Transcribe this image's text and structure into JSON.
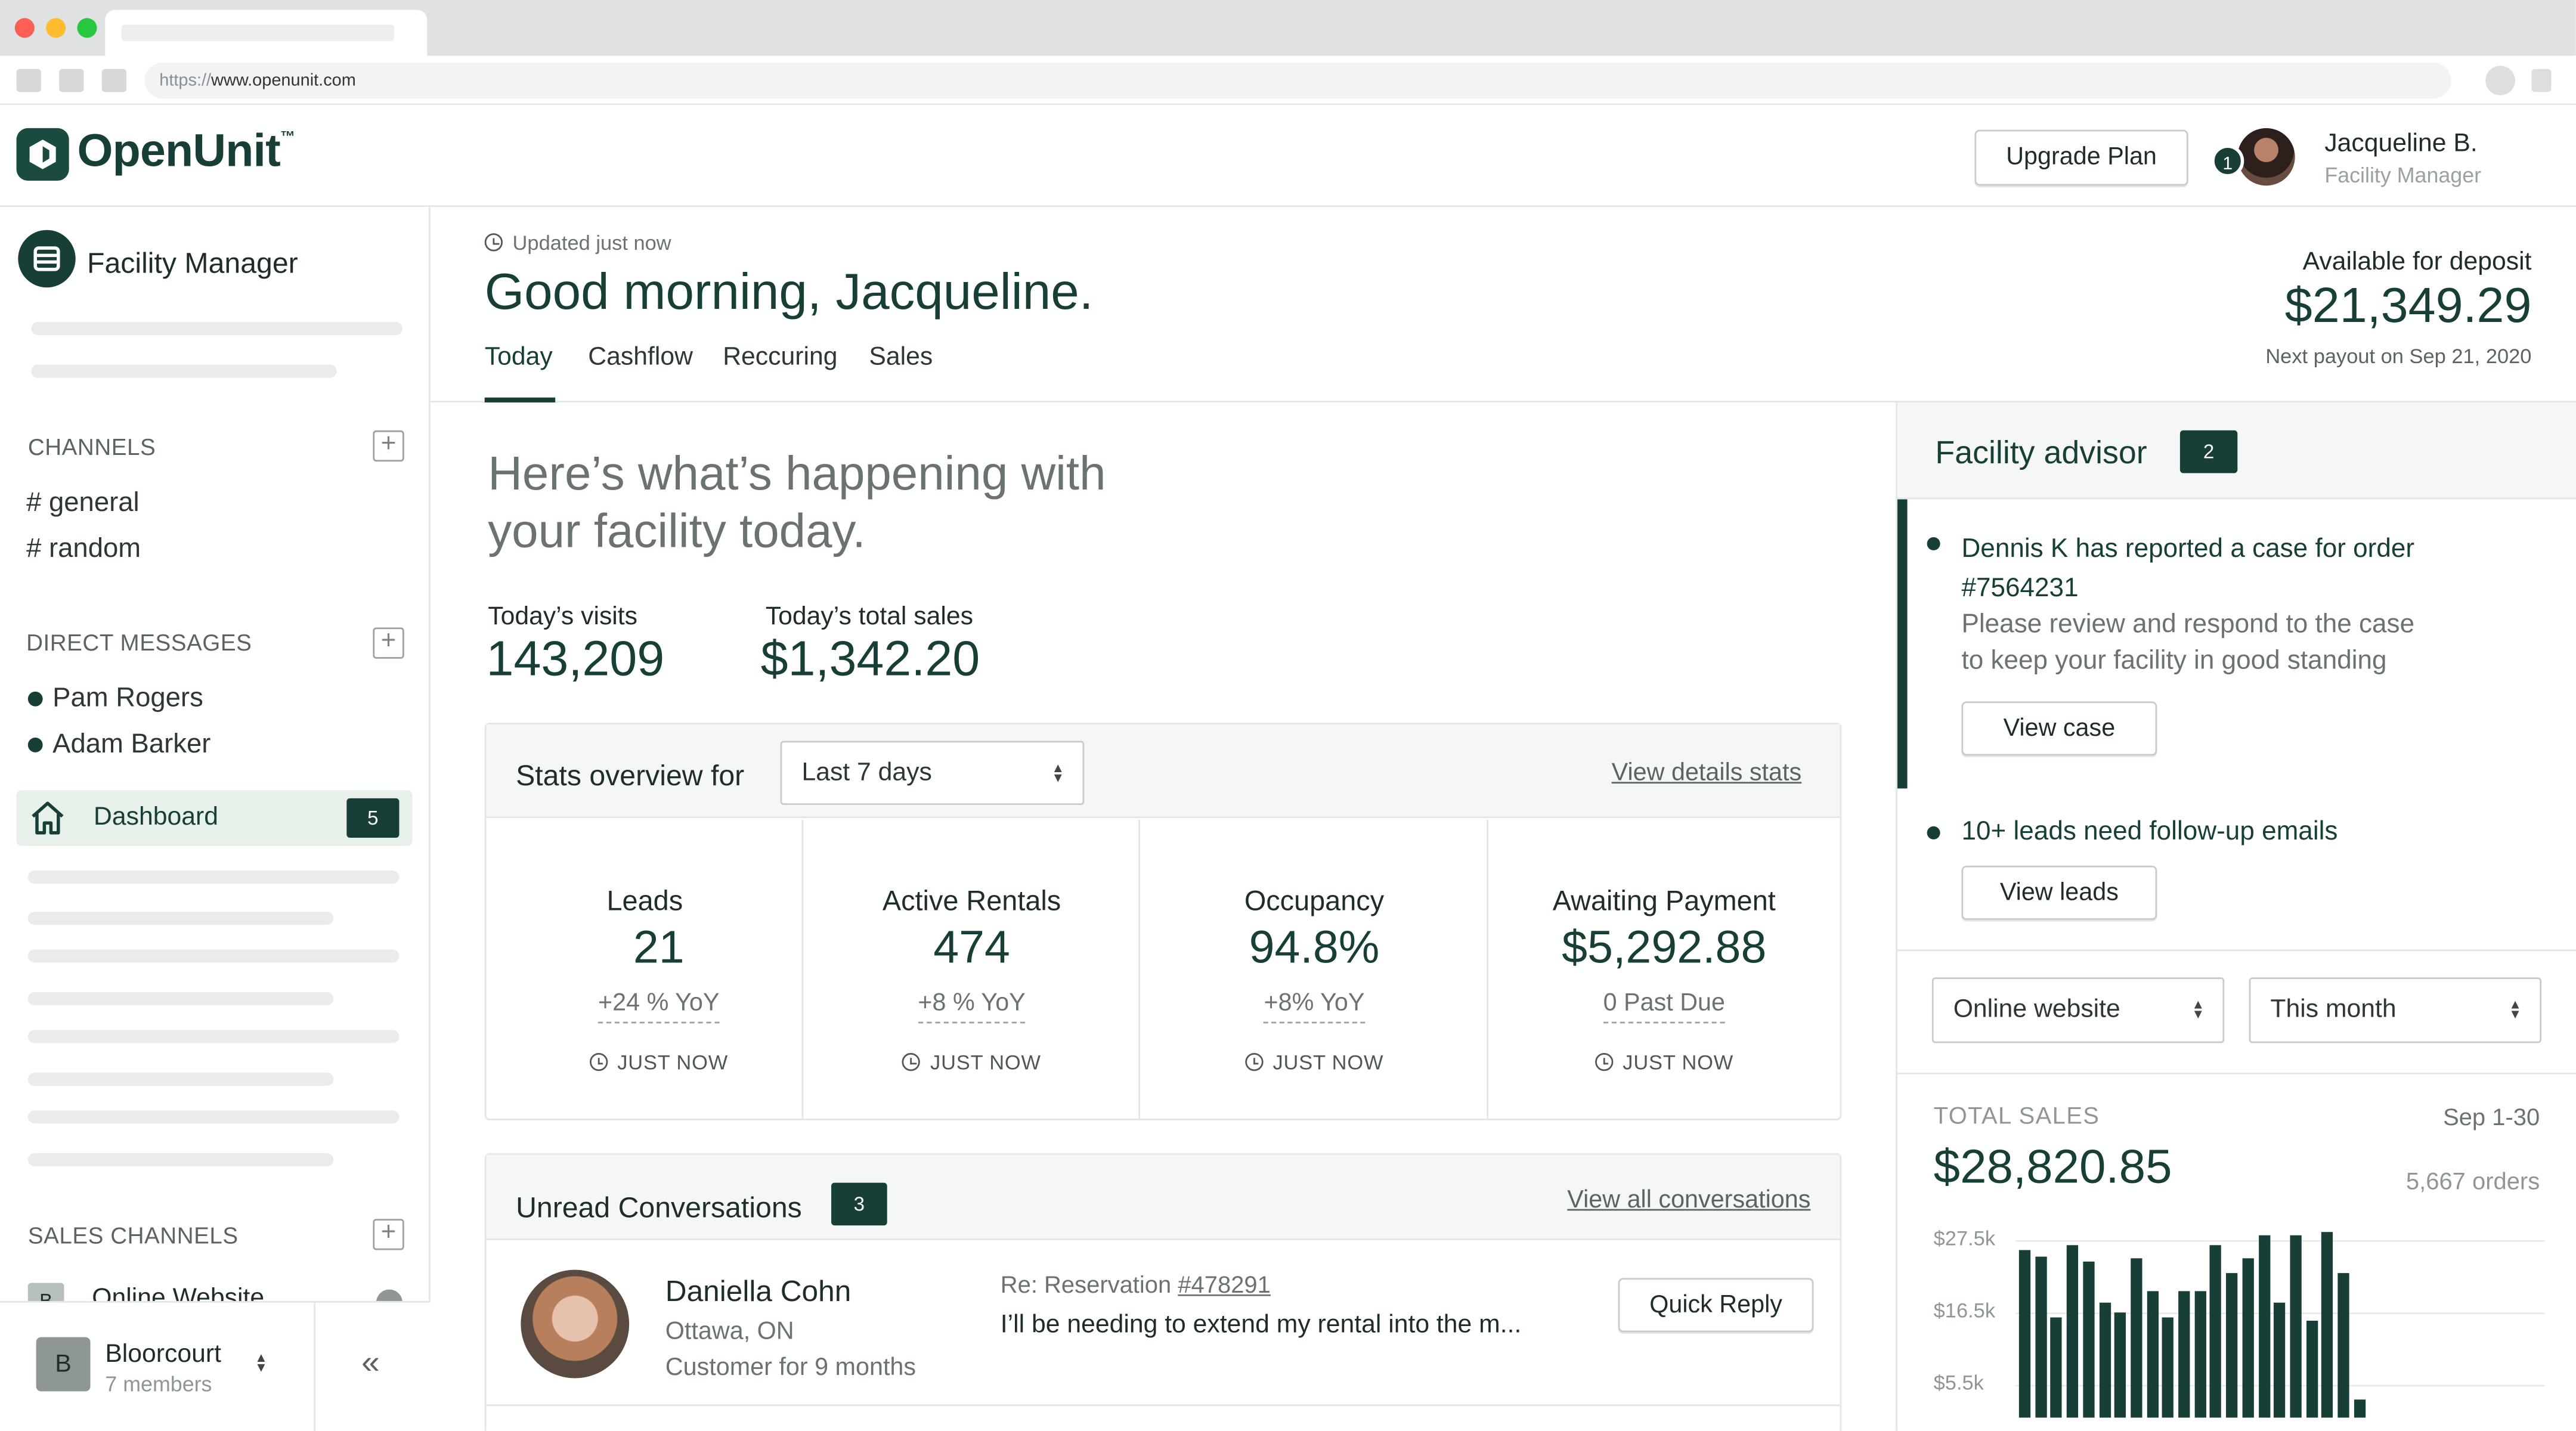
{
  "browser": {
    "url_protocol": "https://",
    "url_host": "www.openunit.com"
  },
  "header": {
    "brand": "OpenUnit",
    "trademark": "™",
    "upgrade_label": "Upgrade Plan",
    "notification_count": "1",
    "user_name": "Jacqueline B.",
    "user_role": "Facility Manager"
  },
  "sidebar": {
    "workspace_title": "Facility Manager",
    "channels_label": "CHANNELS",
    "channels": [
      "# general",
      "# random"
    ],
    "dm_label": "DIRECT MESSAGES",
    "dms": [
      "Pam Rogers",
      "Adam Barker"
    ],
    "dashboard_label": "Dashboard",
    "dashboard_count": "5",
    "sales_channels_label": "SALES CHANNELS",
    "sales_channel_item": "Online Website",
    "sales_channel_letter": "B",
    "org_initial": "B",
    "org_name": "Bloorcourt",
    "org_members": "7 members",
    "collapse_icon": "«"
  },
  "main": {
    "updated": "Updated just now",
    "greeting": "Good morning, Jacqueline.",
    "tabs": [
      "Today",
      "Cashflow",
      "Reccuring",
      "Sales"
    ],
    "deposit_label": "Available for deposit",
    "deposit_amount": "$21,349.29",
    "payout": "Next payout on Sep 21, 2020",
    "intro_line1": "Here’s what’s happening with",
    "intro_line2": "your facility today.",
    "visits_label": "Today’s visits",
    "visits_value": "143,209",
    "sales_label": "Today’s total sales",
    "sales_value": "$1,342.20"
  },
  "stats": {
    "overview_label": "Stats overview for",
    "range": "Last 7 days",
    "details_link": "View details stats",
    "cards": [
      {
        "title": "Leads",
        "value": "21",
        "delta": "+24 % YoY",
        "time": "JUST NOW"
      },
      {
        "title": "Active Rentals",
        "value": "474",
        "delta": "+8 % YoY",
        "time": "JUST NOW"
      },
      {
        "title": "Occupancy",
        "value": "94.8%",
        "delta": "+8% YoY",
        "time": "JUST NOW"
      },
      {
        "title": "Awaiting Payment",
        "value": "$5,292.88",
        "delta": "0 Past Due",
        "time": "JUST NOW"
      }
    ]
  },
  "conversations": {
    "title": "Unread Conversations",
    "count": "3",
    "view_all": "View all conversations",
    "item": {
      "name": "Daniella Cohn",
      "location": "Ottawa, ON",
      "tenure": "Customer for 9 months",
      "subject_prefix": "Re: Reservation ",
      "subject_ref": "#478291",
      "preview": "I’ll be needing to extend my rental into the m...",
      "reply_label": "Quick Reply"
    }
  },
  "advisor": {
    "title": "Facility advisor",
    "count": "2",
    "item1_title_line1": "Dennis K has reported a case for order",
    "item1_title_line2": "#7564231",
    "item1_body_line1": "Please review and respond to the case",
    "item1_body_line2": "to keep your facility in good standing",
    "item1_button": "View case",
    "item2_title": "10+ leads need follow-up emails",
    "item2_button": "View leads",
    "filter_channel": "Online website",
    "filter_period": "This month"
  },
  "sales_chart_panel": {
    "label": "TOTAL SALES",
    "period": "Sep 1-30",
    "total": "$28,820.85",
    "orders": "5,667 orders"
  },
  "chart_data": {
    "type": "bar",
    "title": "",
    "y_ticks": [
      "$27.5k",
      "$16.5k",
      "$5.5k"
    ],
    "ylim": [
      0,
      33
    ],
    "values": [
      28.5,
      27.5,
      17,
      29.5,
      26.5,
      19.5,
      18,
      27,
      21.5,
      17,
      21.5,
      21.5,
      29.5,
      24.5,
      27,
      31,
      19.5,
      31,
      16.5,
      31.5,
      24.5,
      3
    ]
  },
  "colors": {
    "brand": "#173f37",
    "active_bg": "#e7f1ea"
  }
}
